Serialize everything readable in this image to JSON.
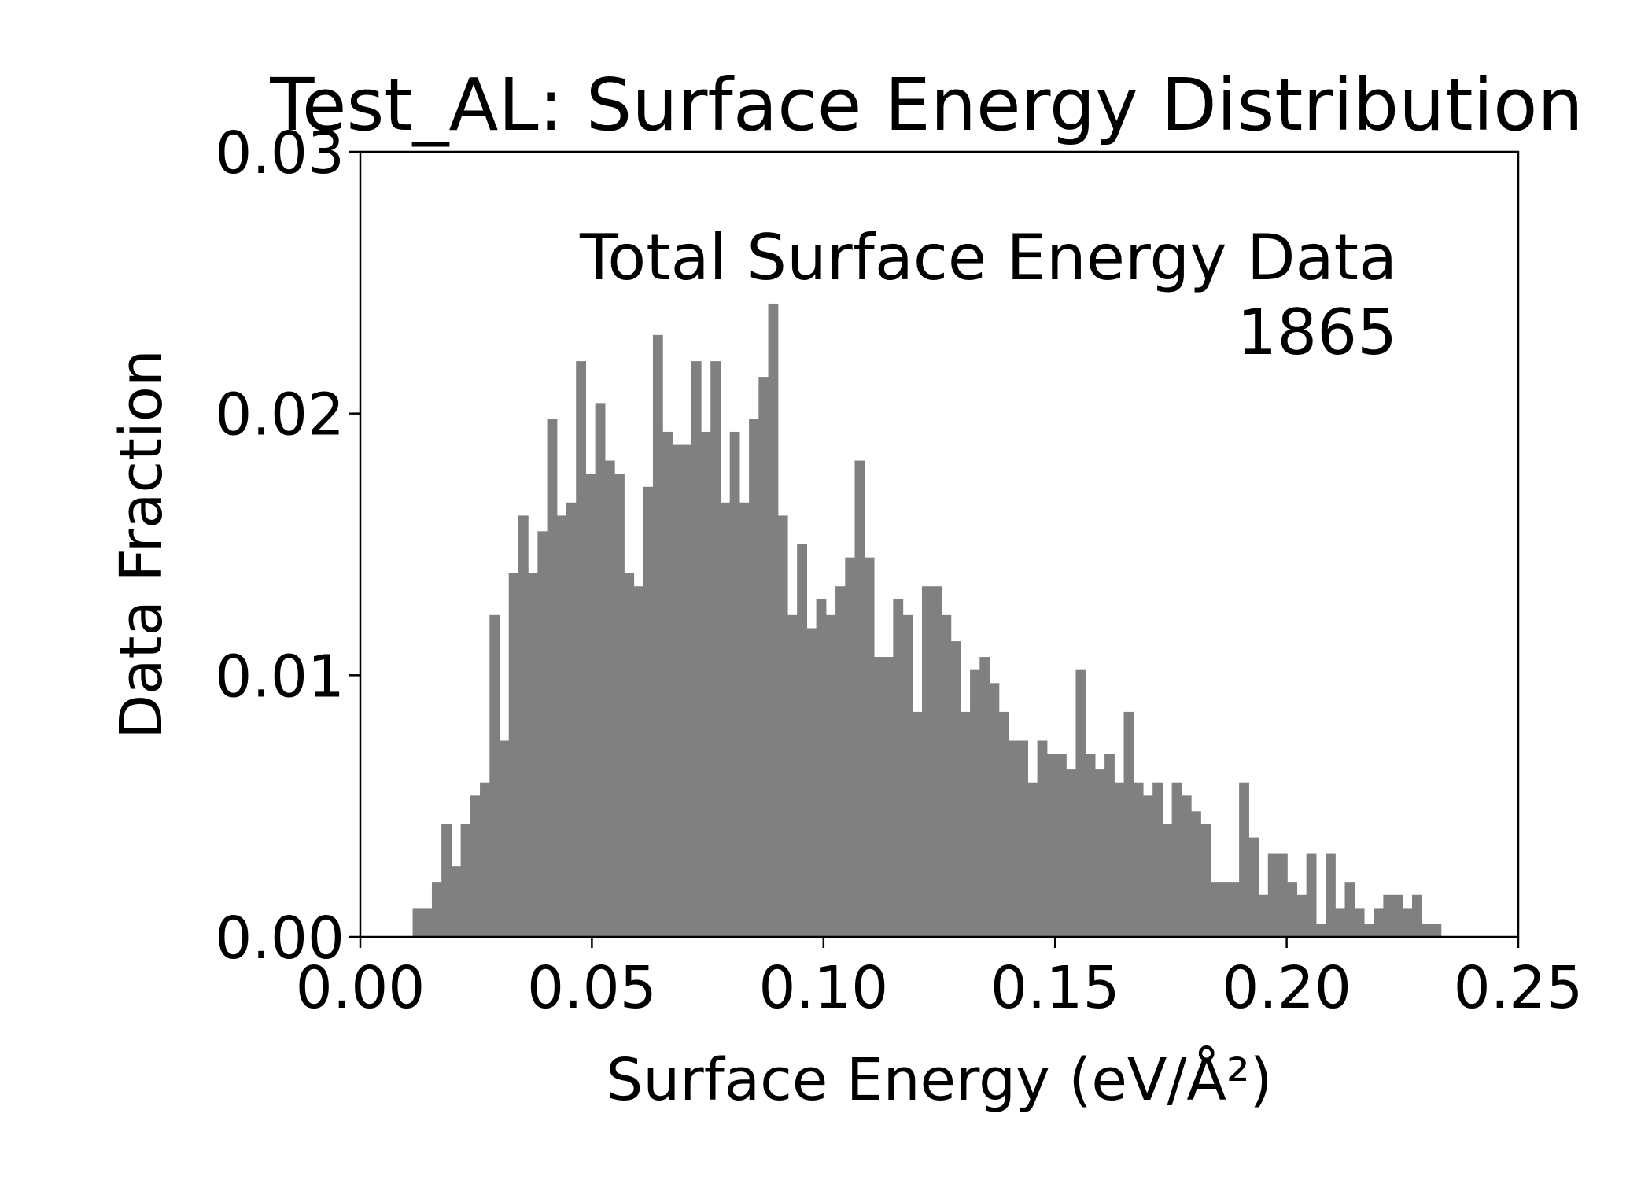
{
  "chart_data": {
    "type": "bar",
    "title": "Test_AL: Surface Energy Distribution",
    "xlabel": "Surface Energy (eV/Å²)",
    "ylabel": "Data Fraction",
    "annotation": {
      "line1": "Total Surface Energy Data",
      "line2": "1865"
    },
    "xlim": [
      0.0,
      0.25
    ],
    "ylim": [
      0.0,
      0.03
    ],
    "x_ticks": [
      "0.00",
      "0.05",
      "0.10",
      "0.15",
      "0.20",
      "0.25"
    ],
    "y_ticks": [
      "0.00",
      "0.01",
      "0.02",
      "0.03"
    ],
    "bar_color": "#808080",
    "bin_width": 0.002,
    "bin_edges": [
      0.0113,
      0.2333
    ],
    "values": [
      0.0011,
      0.0011,
      0.0021,
      0.0043,
      0.0027,
      0.0043,
      0.0054,
      0.0059,
      0.0123,
      0.0075,
      0.0139,
      0.0161,
      0.0139,
      0.0155,
      0.0198,
      0.0161,
      0.0166,
      0.022,
      0.0177,
      0.0204,
      0.0182,
      0.0177,
      0.0139,
      0.0134,
      0.0172,
      0.023,
      0.0193,
      0.0188,
      0.0188,
      0.022,
      0.0193,
      0.022,
      0.0166,
      0.0193,
      0.0166,
      0.0198,
      0.0214,
      0.0242,
      0.0161,
      0.0123,
      0.015,
      0.0118,
      0.0129,
      0.0123,
      0.0134,
      0.0145,
      0.0182,
      0.0145,
      0.0107,
      0.0107,
      0.0129,
      0.0123,
      0.0086,
      0.0134,
      0.0134,
      0.0123,
      0.0113,
      0.0086,
      0.0102,
      0.0107,
      0.0097,
      0.0086,
      0.0075,
      0.0075,
      0.0059,
      0.0075,
      0.007,
      0.007,
      0.0064,
      0.0102,
      0.007,
      0.0064,
      0.007,
      0.0059,
      0.0086,
      0.0059,
      0.0054,
      0.0059,
      0.0043,
      0.0059,
      0.0054,
      0.0048,
      0.0043,
      0.0021,
      0.0021,
      0.0021,
      0.0059,
      0.0038,
      0.0016,
      0.0032,
      0.0032,
      0.0021,
      0.0016,
      0.0032,
      0.0005,
      0.0032,
      0.0011,
      0.0021,
      0.0011,
      0.0005,
      0.0011,
      0.0016,
      0.0016,
      0.0011,
      0.0016,
      0.0005,
      0.0005
    ]
  }
}
